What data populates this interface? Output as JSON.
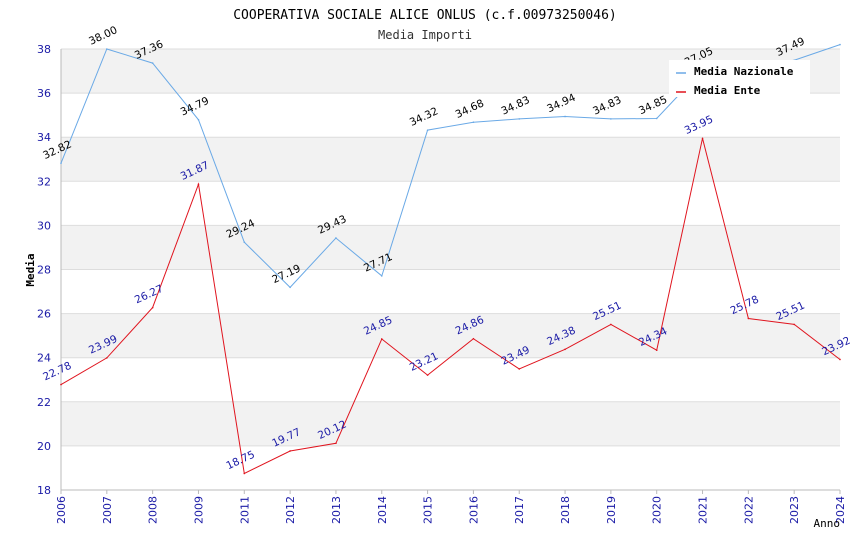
{
  "chart_data": {
    "type": "line",
    "title": "COOPERATIVA SOCIALE ALICE ONLUS (c.f.00973250046)",
    "subtitle": "Media Importi",
    "xlabel": "Anno",
    "ylabel": "Media",
    "ylim": [
      18,
      38
    ],
    "yticks": [
      "18",
      "20",
      "22",
      "24",
      "26",
      "28",
      "30",
      "32",
      "34",
      "36",
      "38"
    ],
    "categories": [
      "2006",
      "2007",
      "2008",
      "2009",
      "2011",
      "2012",
      "2013",
      "2014",
      "2015",
      "2016",
      "2017",
      "2018",
      "2019",
      "2020",
      "2021",
      "2022",
      "2023",
      "2024"
    ],
    "series": [
      {
        "name": "Media Nazionale",
        "color": "#6aa9e6",
        "label_color": "#000000",
        "values": [
          32.82,
          38.0,
          37.36,
          34.79,
          29.24,
          27.19,
          29.43,
          27.71,
          34.32,
          34.68,
          34.83,
          34.94,
          34.83,
          34.85,
          37.05,
          37.2,
          37.49,
          38.2
        ],
        "labels": [
          "32.82",
          "38.00",
          "37.36",
          "34.79",
          "29.24",
          "27.19",
          "29.43",
          "27.71",
          "34.32",
          "34.68",
          "34.83",
          "34.94",
          "34.83",
          "34.85",
          "37.05",
          "",
          "37.49",
          ""
        ]
      },
      {
        "name": "Media Ente",
        "color": "#e0141e",
        "label_color": "#1a1aa6",
        "values": [
          22.78,
          23.99,
          26.27,
          31.87,
          18.75,
          19.77,
          20.12,
          24.85,
          23.21,
          24.86,
          23.49,
          24.38,
          25.51,
          24.34,
          33.95,
          25.78,
          25.51,
          23.92
        ],
        "labels": [
          "22.78",
          "23.99",
          "26.27",
          "31.87",
          "18.75",
          "19.77",
          "20.12",
          "24.85",
          "23.21",
          "24.86",
          "23.49",
          "24.38",
          "25.51",
          "24.34",
          "33.95",
          "25.78",
          "25.51",
          "23.92"
        ]
      }
    ],
    "legend": {
      "position": "top-right",
      "entries": [
        "Media Nazionale",
        "Media Ente"
      ]
    },
    "grid": true
  }
}
